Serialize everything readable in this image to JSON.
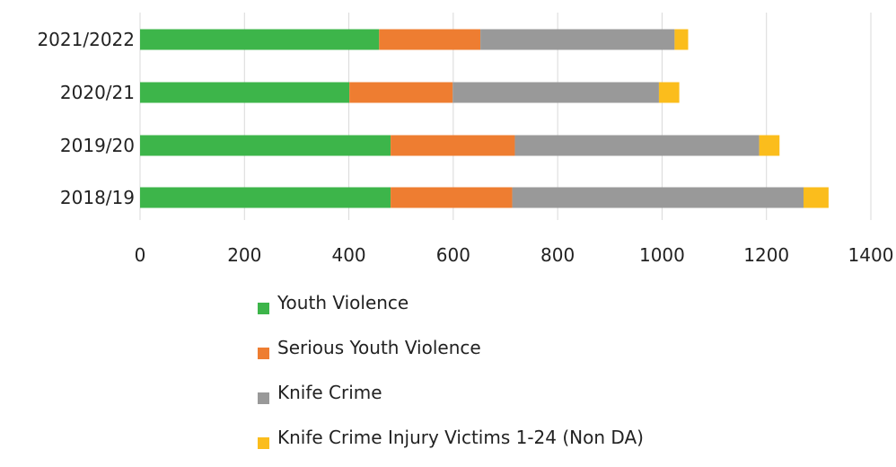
{
  "chart_data": {
    "type": "bar",
    "orientation": "horizontal",
    "stacked": true,
    "categories": [
      "2021/2022",
      "2020/21",
      "2019/20",
      "2018/19"
    ],
    "series": [
      {
        "name": "Youth Violence",
        "color": "#3db54a",
        "values": [
          458,
          401,
          480,
          480
        ]
      },
      {
        "name": "Serious Youth Violence",
        "color": "#ee7d31",
        "values": [
          194,
          198,
          238,
          233
        ]
      },
      {
        "name": "Knife Crime",
        "color": "#999999",
        "values": [
          372,
          395,
          468,
          558
        ]
      },
      {
        "name": "Knife Crime Injury Victims 1-24 (Non DA)",
        "color": "#fbbd1c",
        "values": [
          26,
          39,
          39,
          48
        ]
      }
    ],
    "xlim": [
      0,
      1400
    ],
    "xticks": [
      "0",
      "200",
      "400",
      "600",
      "800",
      "1000",
      "1200",
      "1400"
    ],
    "grid": true,
    "legend_position": "bottom",
    "title": "",
    "xlabel": "",
    "ylabel": ""
  }
}
